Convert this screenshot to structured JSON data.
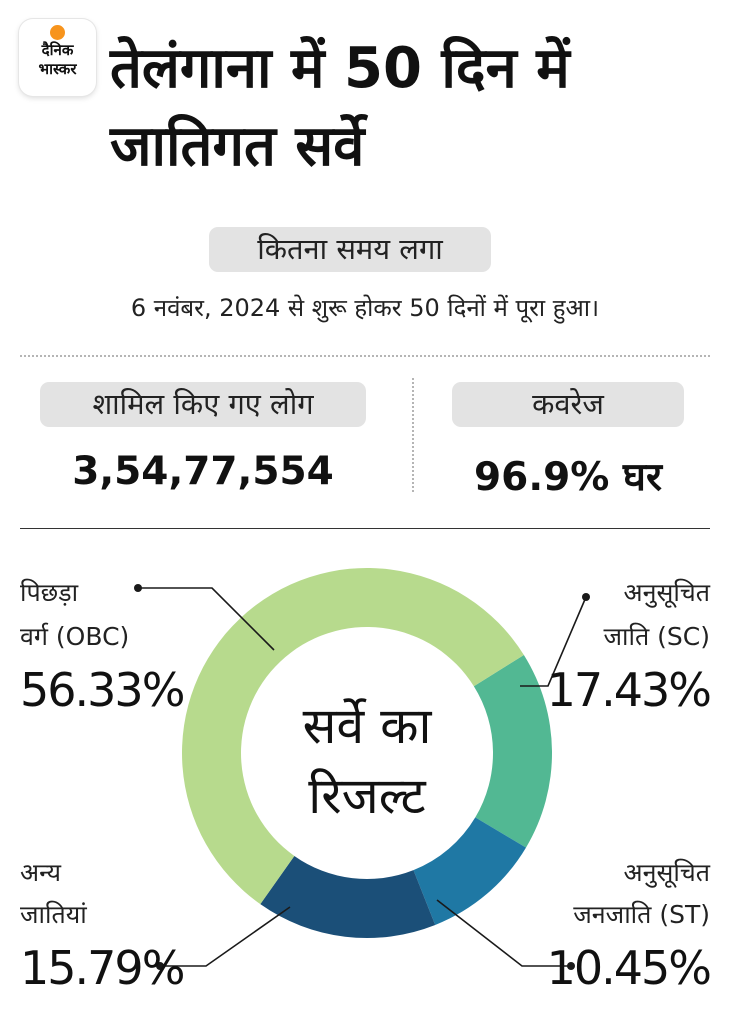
{
  "brand": {
    "line1": "दैनिक",
    "line2": "भास्कर",
    "sun_color": "#f7941d"
  },
  "title": "तेलंगाना में 50 दिन में जातिगत सर्वे",
  "time": {
    "label": "कितना समय लगा",
    "text": "6 नवंबर, 2024 से शुरू होकर 50 दिनों में पूरा हुआ।"
  },
  "stats": {
    "people_label": "शामिल किए गए लोग",
    "people_value": "3,54,77,554",
    "coverage_label": "कवरेज",
    "coverage_value": "96.9% घर"
  },
  "chart_data": {
    "type": "pie",
    "variant": "donut",
    "center_label": [
      "सर्वे का",
      "रिजल्ट"
    ],
    "slices": [
      {
        "label": [
          "अनुसूचित",
          "जाति (SC)"
        ],
        "pct_text": "17.43%",
        "value": 17.43,
        "color": "#52b893"
      },
      {
        "label": [
          "अनुसूचित",
          "जनजाति (ST)"
        ],
        "pct_text": "10.45%",
        "value": 10.45,
        "color": "#1f78a4"
      },
      {
        "label": [
          "अन्य",
          "जातियां"
        ],
        "pct_text": "15.79%",
        "value": 15.79,
        "color": "#1b4f78"
      },
      {
        "label": [
          "पिछड़ा",
          "वर्ग (OBC)"
        ],
        "pct_text": "56.33%",
        "value": 56.33,
        "color": "#b7da8d"
      }
    ]
  }
}
